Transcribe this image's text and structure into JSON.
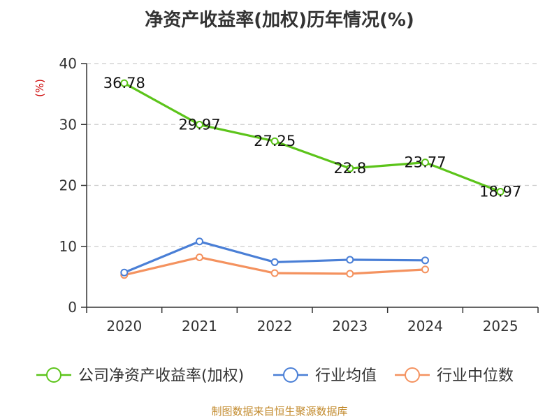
{
  "chart_data": {
    "type": "line",
    "title": "净资产收益率(加权)历年情况(%)",
    "ylabel": "(%)",
    "xlabel": "",
    "categories": [
      "2020",
      "2021",
      "2022",
      "2023",
      "2024",
      "2025"
    ],
    "ylim": [
      0,
      40
    ],
    "yticks": [
      0,
      10,
      20,
      30,
      40
    ],
    "grid": true,
    "legend_position": "bottom",
    "series": [
      {
        "name": "公司净资产收益率(加权)",
        "color": "#5cc41a",
        "values": [
          36.78,
          29.97,
          27.25,
          22.8,
          23.77,
          18.97
        ],
        "labels": [
          "36.78",
          "29.97",
          "27.25",
          "22.8",
          "23.77",
          "18.97"
        ]
      },
      {
        "name": "行业均值",
        "color": "#4a7fd6",
        "values": [
          5.7,
          10.8,
          7.4,
          7.8,
          7.7,
          null
        ]
      },
      {
        "name": "行业中位数",
        "color": "#f4925f",
        "values": [
          5.3,
          8.2,
          5.6,
          5.5,
          6.2,
          null
        ]
      }
    ]
  },
  "source_note": "制图数据来自恒生聚源数据库"
}
